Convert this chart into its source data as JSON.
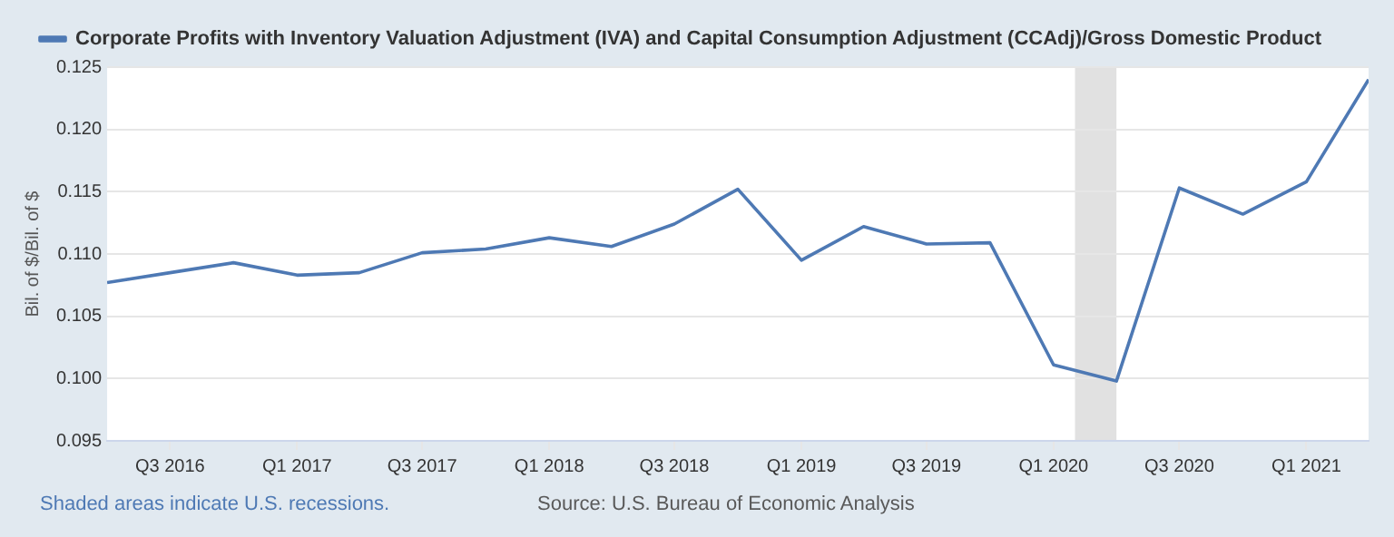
{
  "chart_data": {
    "type": "line",
    "ylabel": "Bil. of $/Bil. of $",
    "x": [
      "2016-04-01",
      "2016-07-01",
      "2016-10-01",
      "2017-01-01",
      "2017-04-01",
      "2017-07-01",
      "2017-10-01",
      "2018-01-01",
      "2018-04-01",
      "2018-07-01",
      "2018-10-01",
      "2019-01-01",
      "2019-04-01",
      "2019-07-01",
      "2019-10-01",
      "2020-01-01",
      "2020-04-01",
      "2020-07-01",
      "2020-10-01",
      "2021-01-01",
      "2021-04-01"
    ],
    "series": [
      {
        "name": "Corporate Profits with Inventory Valuation Adjustment (IVA) and Capital Consumption Adjustment (CCAdj)/Gross Domestic Product",
        "color": "#4e79b4",
        "values": [
          0.1077,
          0.1085,
          0.1093,
          0.1083,
          0.1085,
          0.1101,
          0.1104,
          0.1113,
          0.1106,
          0.1124,
          0.1152,
          0.1095,
          0.1122,
          0.1108,
          0.1109,
          0.1011,
          0.0998,
          0.1153,
          0.1132,
          0.1158,
          0.124
        ]
      }
    ],
    "xlim": [
      "2016-04-01",
      "2021-04-01"
    ],
    "xticks": [
      {
        "value": "2016-07-01",
        "label": "Q3 2016"
      },
      {
        "value": "2017-01-01",
        "label": "Q1 2017"
      },
      {
        "value": "2017-07-01",
        "label": "Q3 2017"
      },
      {
        "value": "2018-01-01",
        "label": "Q1 2018"
      },
      {
        "value": "2018-07-01",
        "label": "Q3 2018"
      },
      {
        "value": "2019-01-01",
        "label": "Q1 2019"
      },
      {
        "value": "2019-07-01",
        "label": "Q3 2019"
      },
      {
        "value": "2020-01-01",
        "label": "Q1 2020"
      },
      {
        "value": "2020-07-01",
        "label": "Q3 2020"
      },
      {
        "value": "2021-01-01",
        "label": "Q1 2021"
      }
    ],
    "ylim": [
      0.095,
      0.125
    ],
    "yticks": [
      {
        "value": 0.095,
        "label": "0.095"
      },
      {
        "value": 0.1,
        "label": "0.100"
      },
      {
        "value": 0.105,
        "label": "0.105"
      },
      {
        "value": 0.11,
        "label": "0.110"
      },
      {
        "value": 0.115,
        "label": "0.115"
      },
      {
        "value": 0.12,
        "label": "0.120"
      },
      {
        "value": 0.125,
        "label": "0.125"
      }
    ],
    "bands": [
      {
        "axis": "x",
        "from": "2020-02-01",
        "to": "2020-04-01",
        "color": "#e1e1e1"
      }
    ],
    "grid": "y",
    "legend": "top left",
    "marker": "none",
    "line_style": "solid",
    "annotations": [
      "Shaded areas indicate U.S. recessions.",
      "Source: U.S. Bureau of Economic Analysis"
    ]
  }
}
